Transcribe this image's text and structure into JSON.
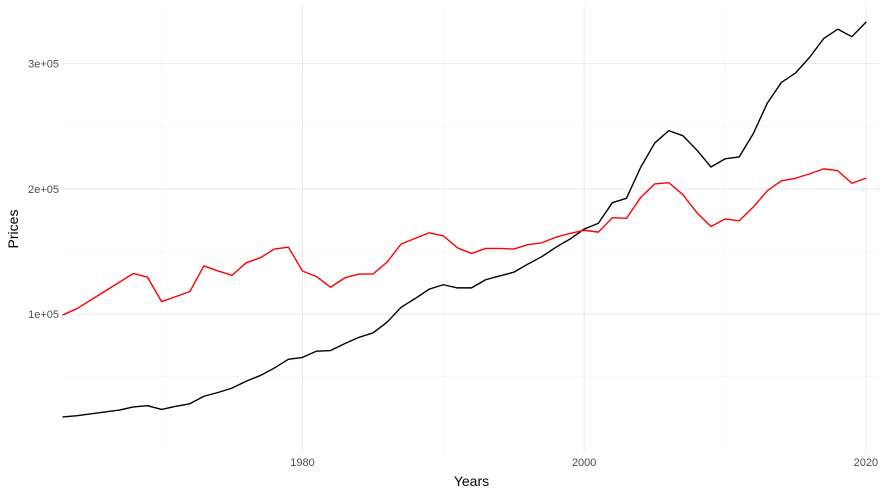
{
  "chart_data": {
    "type": "line",
    "xlabel": "Years",
    "ylabel": "Prices",
    "xlim": [
      1963,
      2021
    ],
    "ylim": [
      -10000,
      346000
    ],
    "x_ticks": [
      1980,
      2000,
      2020
    ],
    "x_tick_labels": [
      "1980",
      "2000",
      "2020"
    ],
    "y_ticks": [
      100000,
      200000,
      300000
    ],
    "y_tick_labels": [
      "1e+05",
      "2e+05",
      "3e+05"
    ],
    "grid": true,
    "legend": "none",
    "series": [
      {
        "color": "#000000",
        "x": [
          1963,
          1964,
          1965,
          1966,
          1967,
          1968,
          1969,
          1970,
          1971,
          1972,
          1973,
          1974,
          1975,
          1976,
          1977,
          1978,
          1979,
          1980,
          1981,
          1982,
          1983,
          1984,
          1985,
          1986,
          1987,
          1988,
          1989,
          1990,
          1991,
          1992,
          1993,
          1994,
          1995,
          1996,
          1997,
          1998,
          1999,
          2000,
          2001,
          2002,
          2003,
          2004,
          2005,
          2006,
          2007,
          2008,
          2009,
          2010,
          2011,
          2012,
          2013,
          2014,
          2015,
          2016,
          2017,
          2018,
          2019,
          2020
        ],
        "values": [
          18000,
          19000,
          20500,
          22000,
          23500,
          26000,
          27000,
          24000,
          26500,
          28500,
          34500,
          37500,
          41000,
          46500,
          51000,
          57000,
          64000,
          65500,
          70500,
          71000,
          76500,
          81500,
          85000,
          93500,
          105500,
          112500,
          120000,
          123500,
          121000,
          121000,
          127500,
          130500,
          133500,
          140000,
          146000,
          153500,
          160000,
          168000,
          172500,
          189000,
          192500,
          217000,
          236500,
          246500,
          242500,
          231000,
          217500,
          224000,
          225500,
          244000,
          268500,
          285000,
          292500,
          305000,
          320000,
          327500,
          321500,
          333000
        ]
      },
      {
        "color": "#ff0000",
        "x": [
          1963,
          1964,
          1965,
          1966,
          1967,
          1968,
          1969,
          1970,
          1971,
          1972,
          1973,
          1974,
          1975,
          1976,
          1977,
          1978,
          1979,
          1980,
          1981,
          1982,
          1983,
          1984,
          1985,
          1986,
          1987,
          1988,
          1989,
          1990,
          1991,
          1992,
          1993,
          1994,
          1995,
          1996,
          1997,
          1998,
          1999,
          2000,
          2001,
          2002,
          2003,
          2004,
          2005,
          2006,
          2007,
          2008,
          2009,
          2010,
          2011,
          2012,
          2013,
          2014,
          2015,
          2016,
          2017,
          2018,
          2019,
          2020
        ],
        "values": [
          99500,
          104500,
          111500,
          118500,
          125500,
          132500,
          129500,
          110000,
          114000,
          118000,
          138500,
          134500,
          131000,
          141000,
          145000,
          152000,
          153500,
          134500,
          130000,
          121500,
          129000,
          132000,
          132000,
          141500,
          156000,
          160500,
          165000,
          162500,
          153000,
          148500,
          152500,
          152500,
          152000,
          155500,
          157000,
          161500,
          164500,
          167000,
          165500,
          177000,
          176500,
          193000,
          204000,
          205000,
          195500,
          181000,
          170000,
          176000,
          174500,
          185500,
          198500,
          206500,
          208500,
          212000,
          216000,
          214500,
          204500,
          208500
        ]
      }
    ]
  }
}
